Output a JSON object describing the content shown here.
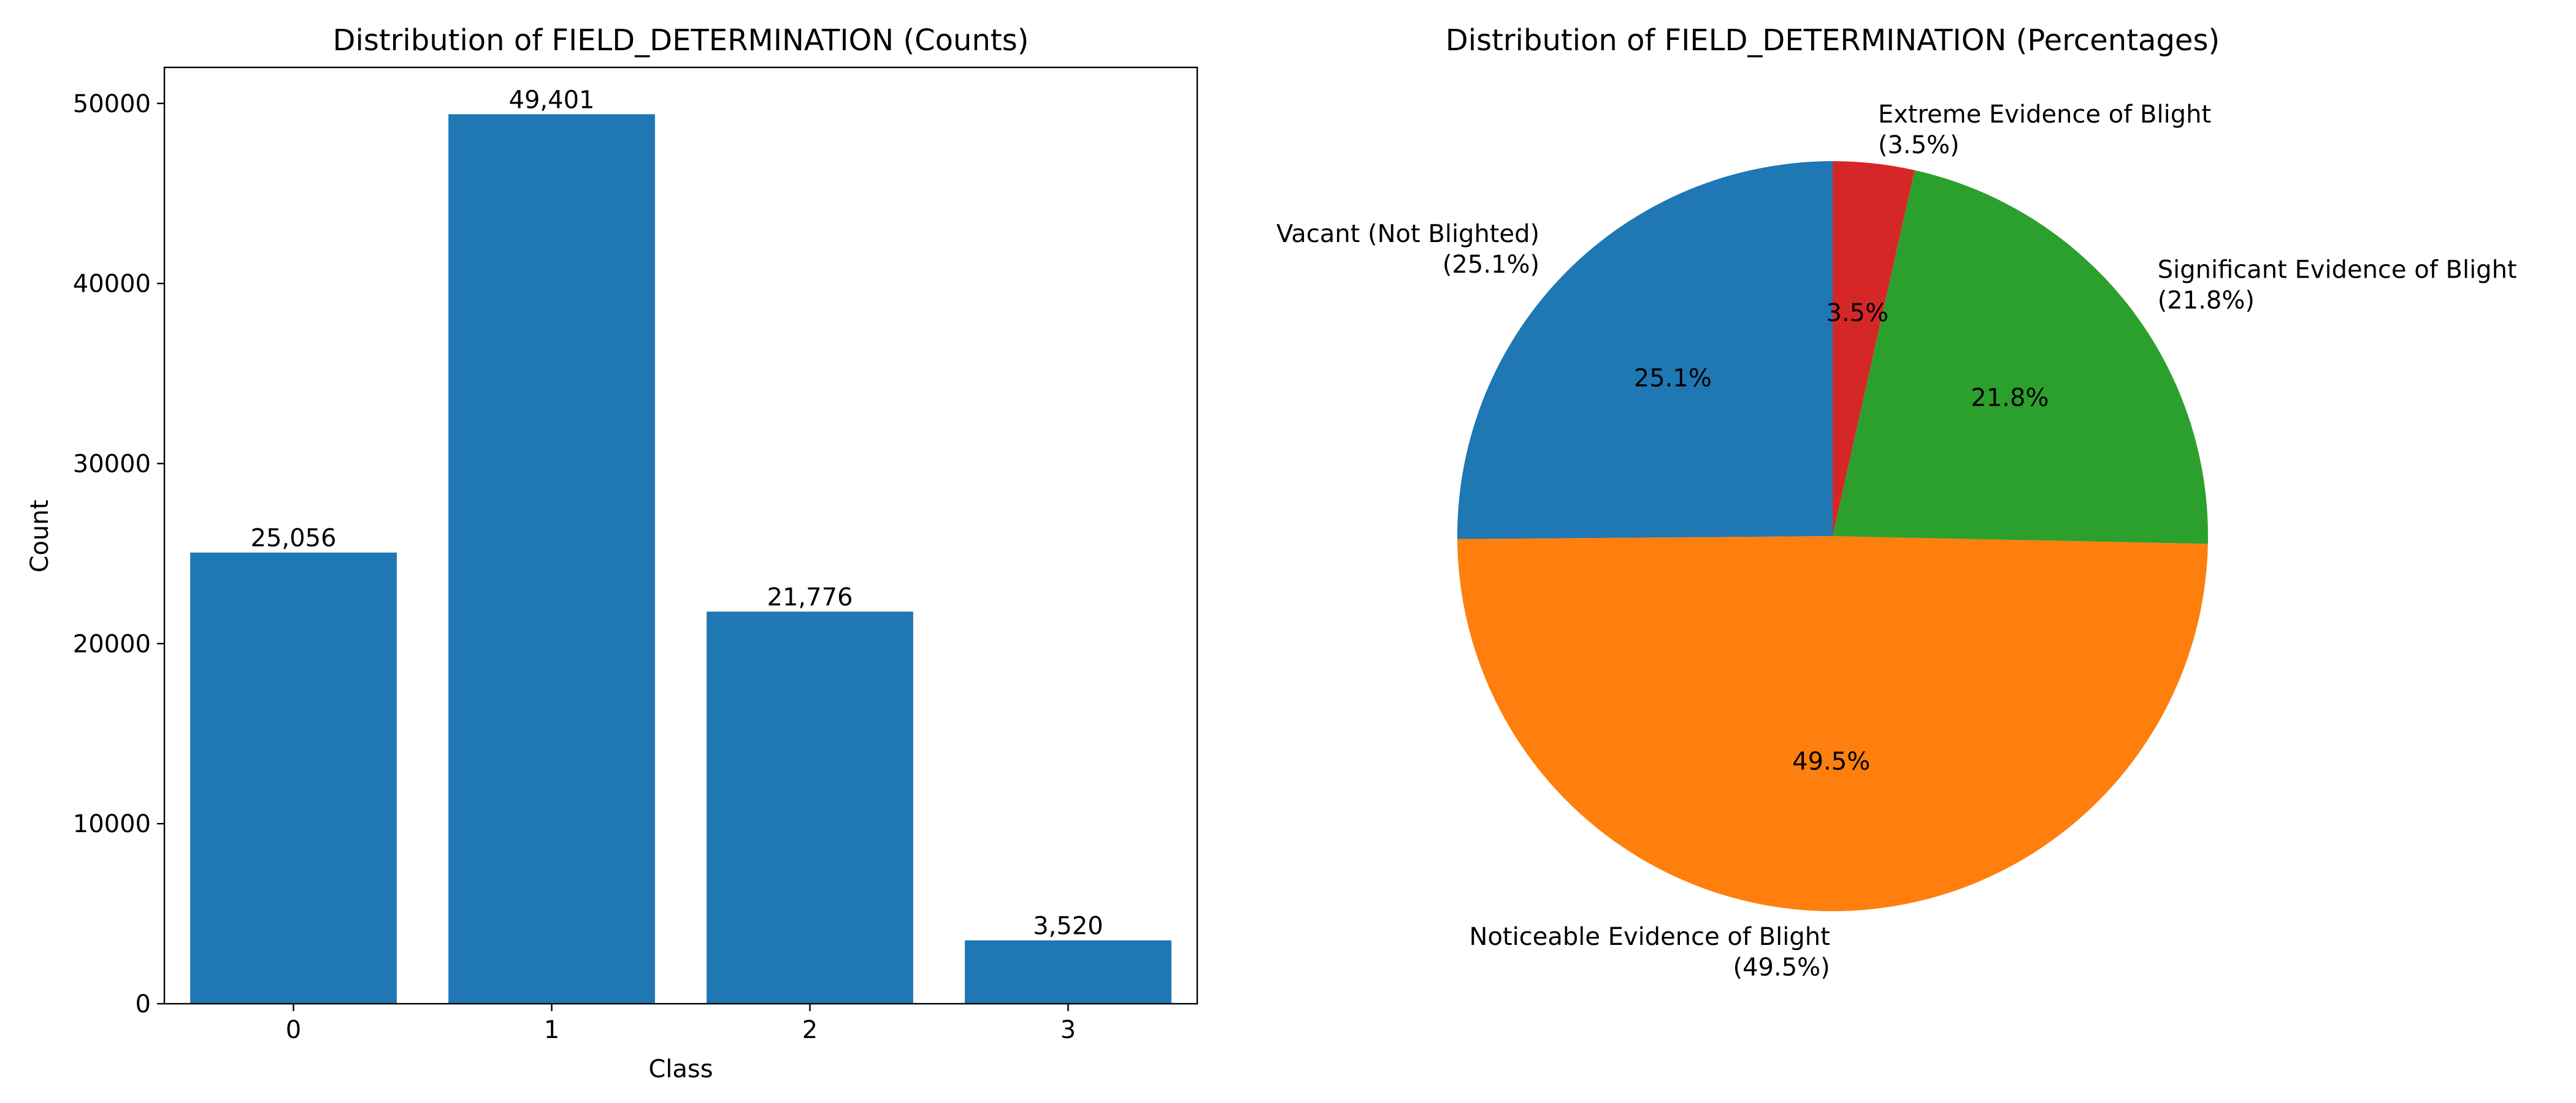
{
  "chart_data": [
    {
      "type": "bar",
      "title": "Distribution of FIELD_DETERMINATION (Counts)",
      "xlabel": "Class",
      "ylabel": "Count",
      "categories": [
        "0",
        "1",
        "2",
        "3"
      ],
      "values": [
        25056,
        49401,
        21776,
        3520
      ],
      "value_labels": [
        "25,056",
        "49,401",
        "21,776",
        "3,520"
      ],
      "ylim": [
        0,
        52000
      ],
      "yticks": [
        0,
        10000,
        20000,
        30000,
        40000,
        50000
      ],
      "ytick_labels": [
        "0",
        "10000",
        "20000",
        "30000",
        "40000",
        "50000"
      ],
      "grid": false,
      "color": "#1f77b4"
    },
    {
      "type": "pie",
      "title": "Distribution of FIELD_DETERMINATION (Percentages)",
      "start_angle_deg": 90,
      "direction": "counterclockwise",
      "slices": [
        {
          "label": "Vacant (Not Blighted)",
          "label_pct": "(25.1%)",
          "value": 25.1,
          "pct_text": "25.1%",
          "color": "#1f77b4"
        },
        {
          "label": "Noticeable Evidence of Blight",
          "label_pct": "(49.5%)",
          "value": 49.5,
          "pct_text": "49.5%",
          "color": "#ff7f0e"
        },
        {
          "label": "Significant Evidence of Blight",
          "label_pct": "(21.8%)",
          "value": 21.8,
          "pct_text": "21.8%",
          "color": "#2ca02c"
        },
        {
          "label": "Extreme Evidence of Blight",
          "label_pct": "(3.5%)",
          "value": 3.5,
          "pct_text": "3.5%",
          "color": "#d62728"
        }
      ]
    }
  ]
}
